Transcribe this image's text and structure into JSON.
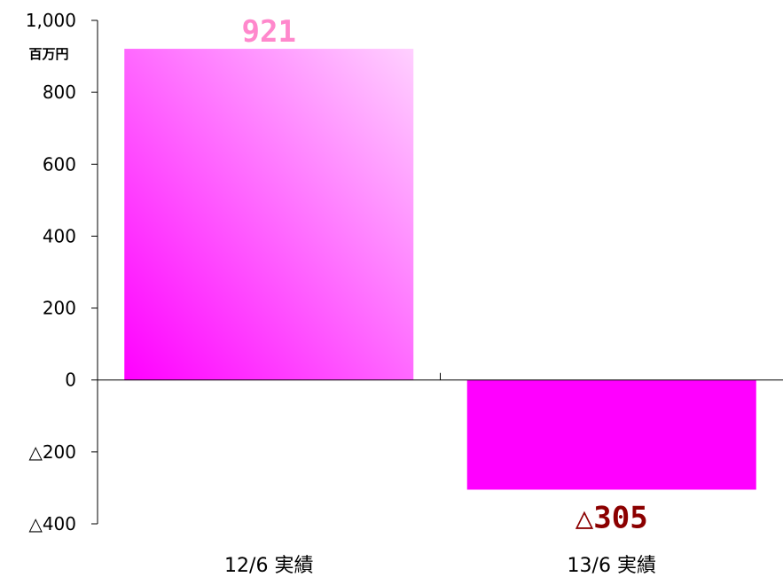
{
  "chart_data": {
    "type": "bar",
    "unit": "百万円",
    "categories": [
      "12/6 実績",
      "13/6 実績"
    ],
    "values": [
      921,
      -305
    ],
    "data_labels": [
      "921",
      "△305"
    ],
    "ylim": [
      -400,
      1000
    ],
    "yticks": [
      {
        "value": 1000,
        "label": "1,000"
      },
      {
        "value": 800,
        "label": "800"
      },
      {
        "value": 600,
        "label": "600"
      },
      {
        "value": 400,
        "label": "400"
      },
      {
        "value": 200,
        "label": "200"
      },
      {
        "value": 0,
        "label": "0"
      },
      {
        "value": -200,
        "label": "△200"
      },
      {
        "value": -400,
        "label": "△400"
      }
    ],
    "grid": false,
    "colors": {
      "bar_1_gradient_start": "#ff00ff",
      "bar_1_gradient_end": "#ffd0ff",
      "bar_2": "#ff00ff",
      "label_1": "#ff88cc",
      "label_2": "#8b0000",
      "axis": "#000000"
    }
  }
}
